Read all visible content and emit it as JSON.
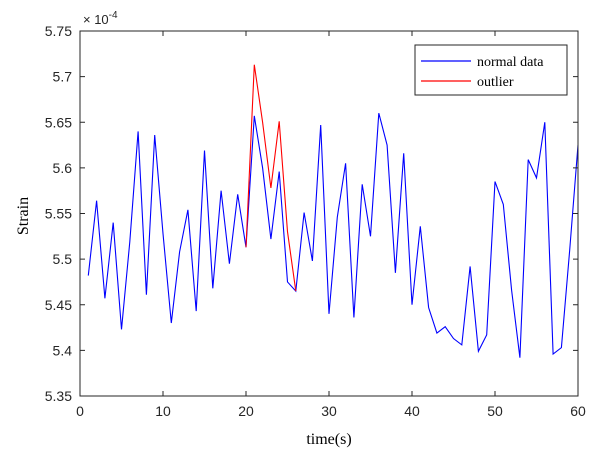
{
  "chart_data": {
    "type": "line",
    "title": "",
    "xlabel": "time(s)",
    "ylabel": "Strain",
    "y_exponent_base": "× 10",
    "y_exponent_power": "-4",
    "xlim": [
      0,
      60
    ],
    "ylim": [
      5.35,
      5.75
    ],
    "x_ticks": [
      0,
      10,
      20,
      30,
      40,
      50,
      60
    ],
    "x_tick_labels": [
      "0",
      "10",
      "20",
      "30",
      "40",
      "50",
      "60"
    ],
    "y_ticks": [
      5.35,
      5.4,
      5.45,
      5.5,
      5.55,
      5.6,
      5.65,
      5.7,
      5.75
    ],
    "y_tick_labels": [
      "5.35",
      "5.4",
      "5.45",
      "5.5",
      "5.55",
      "5.6",
      "5.65",
      "5.7",
      "5.75"
    ],
    "grid": false,
    "legend_position": "top-right",
    "series": [
      {
        "name": "normal data",
        "color": "#0000ff",
        "x": [
          1,
          2,
          3,
          4,
          5,
          6,
          7,
          8,
          9,
          10,
          11,
          12,
          13,
          14,
          15,
          16,
          17,
          18,
          19,
          20,
          21,
          22,
          23,
          24,
          25,
          26,
          27,
          28,
          29,
          30,
          31,
          32,
          33,
          34,
          35,
          36,
          37,
          38,
          39,
          40,
          41,
          42,
          43,
          44,
          45,
          46,
          47,
          48,
          49,
          50,
          51,
          52,
          53,
          54,
          55,
          56,
          57,
          58,
          59,
          60
        ],
        "y": [
          5.482,
          5.564,
          5.457,
          5.54,
          5.423,
          5.519,
          5.64,
          5.461,
          5.636,
          5.528,
          5.43,
          5.508,
          5.554,
          5.443,
          5.619,
          5.468,
          5.575,
          5.495,
          5.571,
          5.513,
          5.657,
          5.6,
          5.522,
          5.596,
          5.475,
          5.465,
          5.551,
          5.498,
          5.647,
          5.44,
          5.546,
          5.605,
          5.436,
          5.582,
          5.525,
          5.66,
          5.625,
          5.485,
          5.616,
          5.45,
          5.536,
          5.447,
          5.419,
          5.426,
          5.413,
          5.406,
          5.492,
          5.399,
          5.417,
          5.585,
          5.56,
          5.466,
          5.392,
          5.609,
          5.589,
          5.65,
          5.396,
          5.403,
          5.51,
          5.625
        ]
      },
      {
        "name": "outlier",
        "color": "#ff0000",
        "x": [
          20,
          21,
          22,
          23,
          24,
          25,
          26
        ],
        "y": [
          5.513,
          5.713,
          5.65,
          5.578,
          5.651,
          5.53,
          5.465
        ]
      }
    ]
  }
}
